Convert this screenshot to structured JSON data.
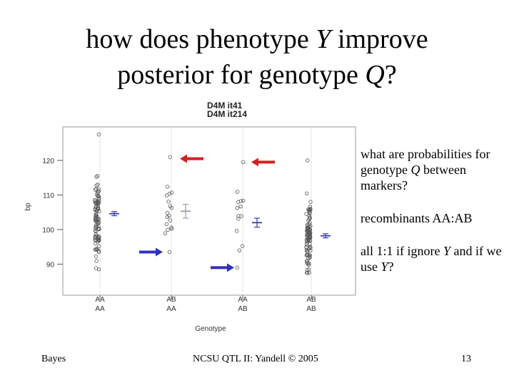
{
  "title": {
    "line1_a": "how does phenotype ",
    "line1_var": "Y",
    "line1_b": " improve",
    "line2_a": "posterior for genotype ",
    "line2_var": "Q",
    "line2_b": "?"
  },
  "legend": {
    "marker1": "D4M it41",
    "marker2": "D4M it214"
  },
  "side": {
    "q1_a": "what are probabilities for genotype ",
    "q1_var": "Q",
    "q1_b": " between markers?",
    "recombinants": "recombinants AA:AB",
    "q3_a": "all 1:1 if ignore ",
    "q3_var1": "Y",
    "q3_b": " and if we use ",
    "q3_var2": "Y",
    "q3_c": "?"
  },
  "footer": {
    "left": "Bayes",
    "center": "NCSU QTL II: Yandell © 2005",
    "page_number": "13"
  },
  "chart_data": {
    "type": "scatter",
    "xlabel": "Genotype",
    "ylabel": "bp",
    "ylim": [
      85,
      127
    ],
    "yticks": [
      "90",
      "100",
      "110",
      "120"
    ],
    "categories": [
      {
        "top": "AA",
        "bottom": "AA"
      },
      {
        "top": "AB",
        "bottom": "AA"
      },
      {
        "top": "AA",
        "bottom": "AB"
      },
      {
        "top": "AB",
        "bottom": "AB"
      }
    ],
    "groups": [
      {
        "mean": 104.6,
        "se": 0.6,
        "approx_n": 95,
        "min": 88.5,
        "max": 127.5
      },
      {
        "mean": 105.3,
        "se": 2.0,
        "approx_n": 18,
        "min": 93.5,
        "max": 121
      },
      {
        "mean": 102.0,
        "se": 1.3,
        "approx_n": 14,
        "min": 89,
        "max": 119.5
      },
      {
        "mean": 98.2,
        "se": 0.6,
        "approx_n": 95,
        "min": 87.5,
        "max": 120
      }
    ],
    "arrows": [
      {
        "group": 1,
        "y": 120.5,
        "color": "#d42020"
      },
      {
        "group": 2,
        "y": 119.5,
        "color": "#d42020"
      },
      {
        "group": 1,
        "y": 93.5,
        "color": "#3030c0"
      },
      {
        "group": 2,
        "y": 89,
        "color": "#3030c0"
      }
    ],
    "colors": {
      "points": "#555555",
      "means": "#3a3aa8",
      "second_mean": "#9a9ab8"
    }
  }
}
